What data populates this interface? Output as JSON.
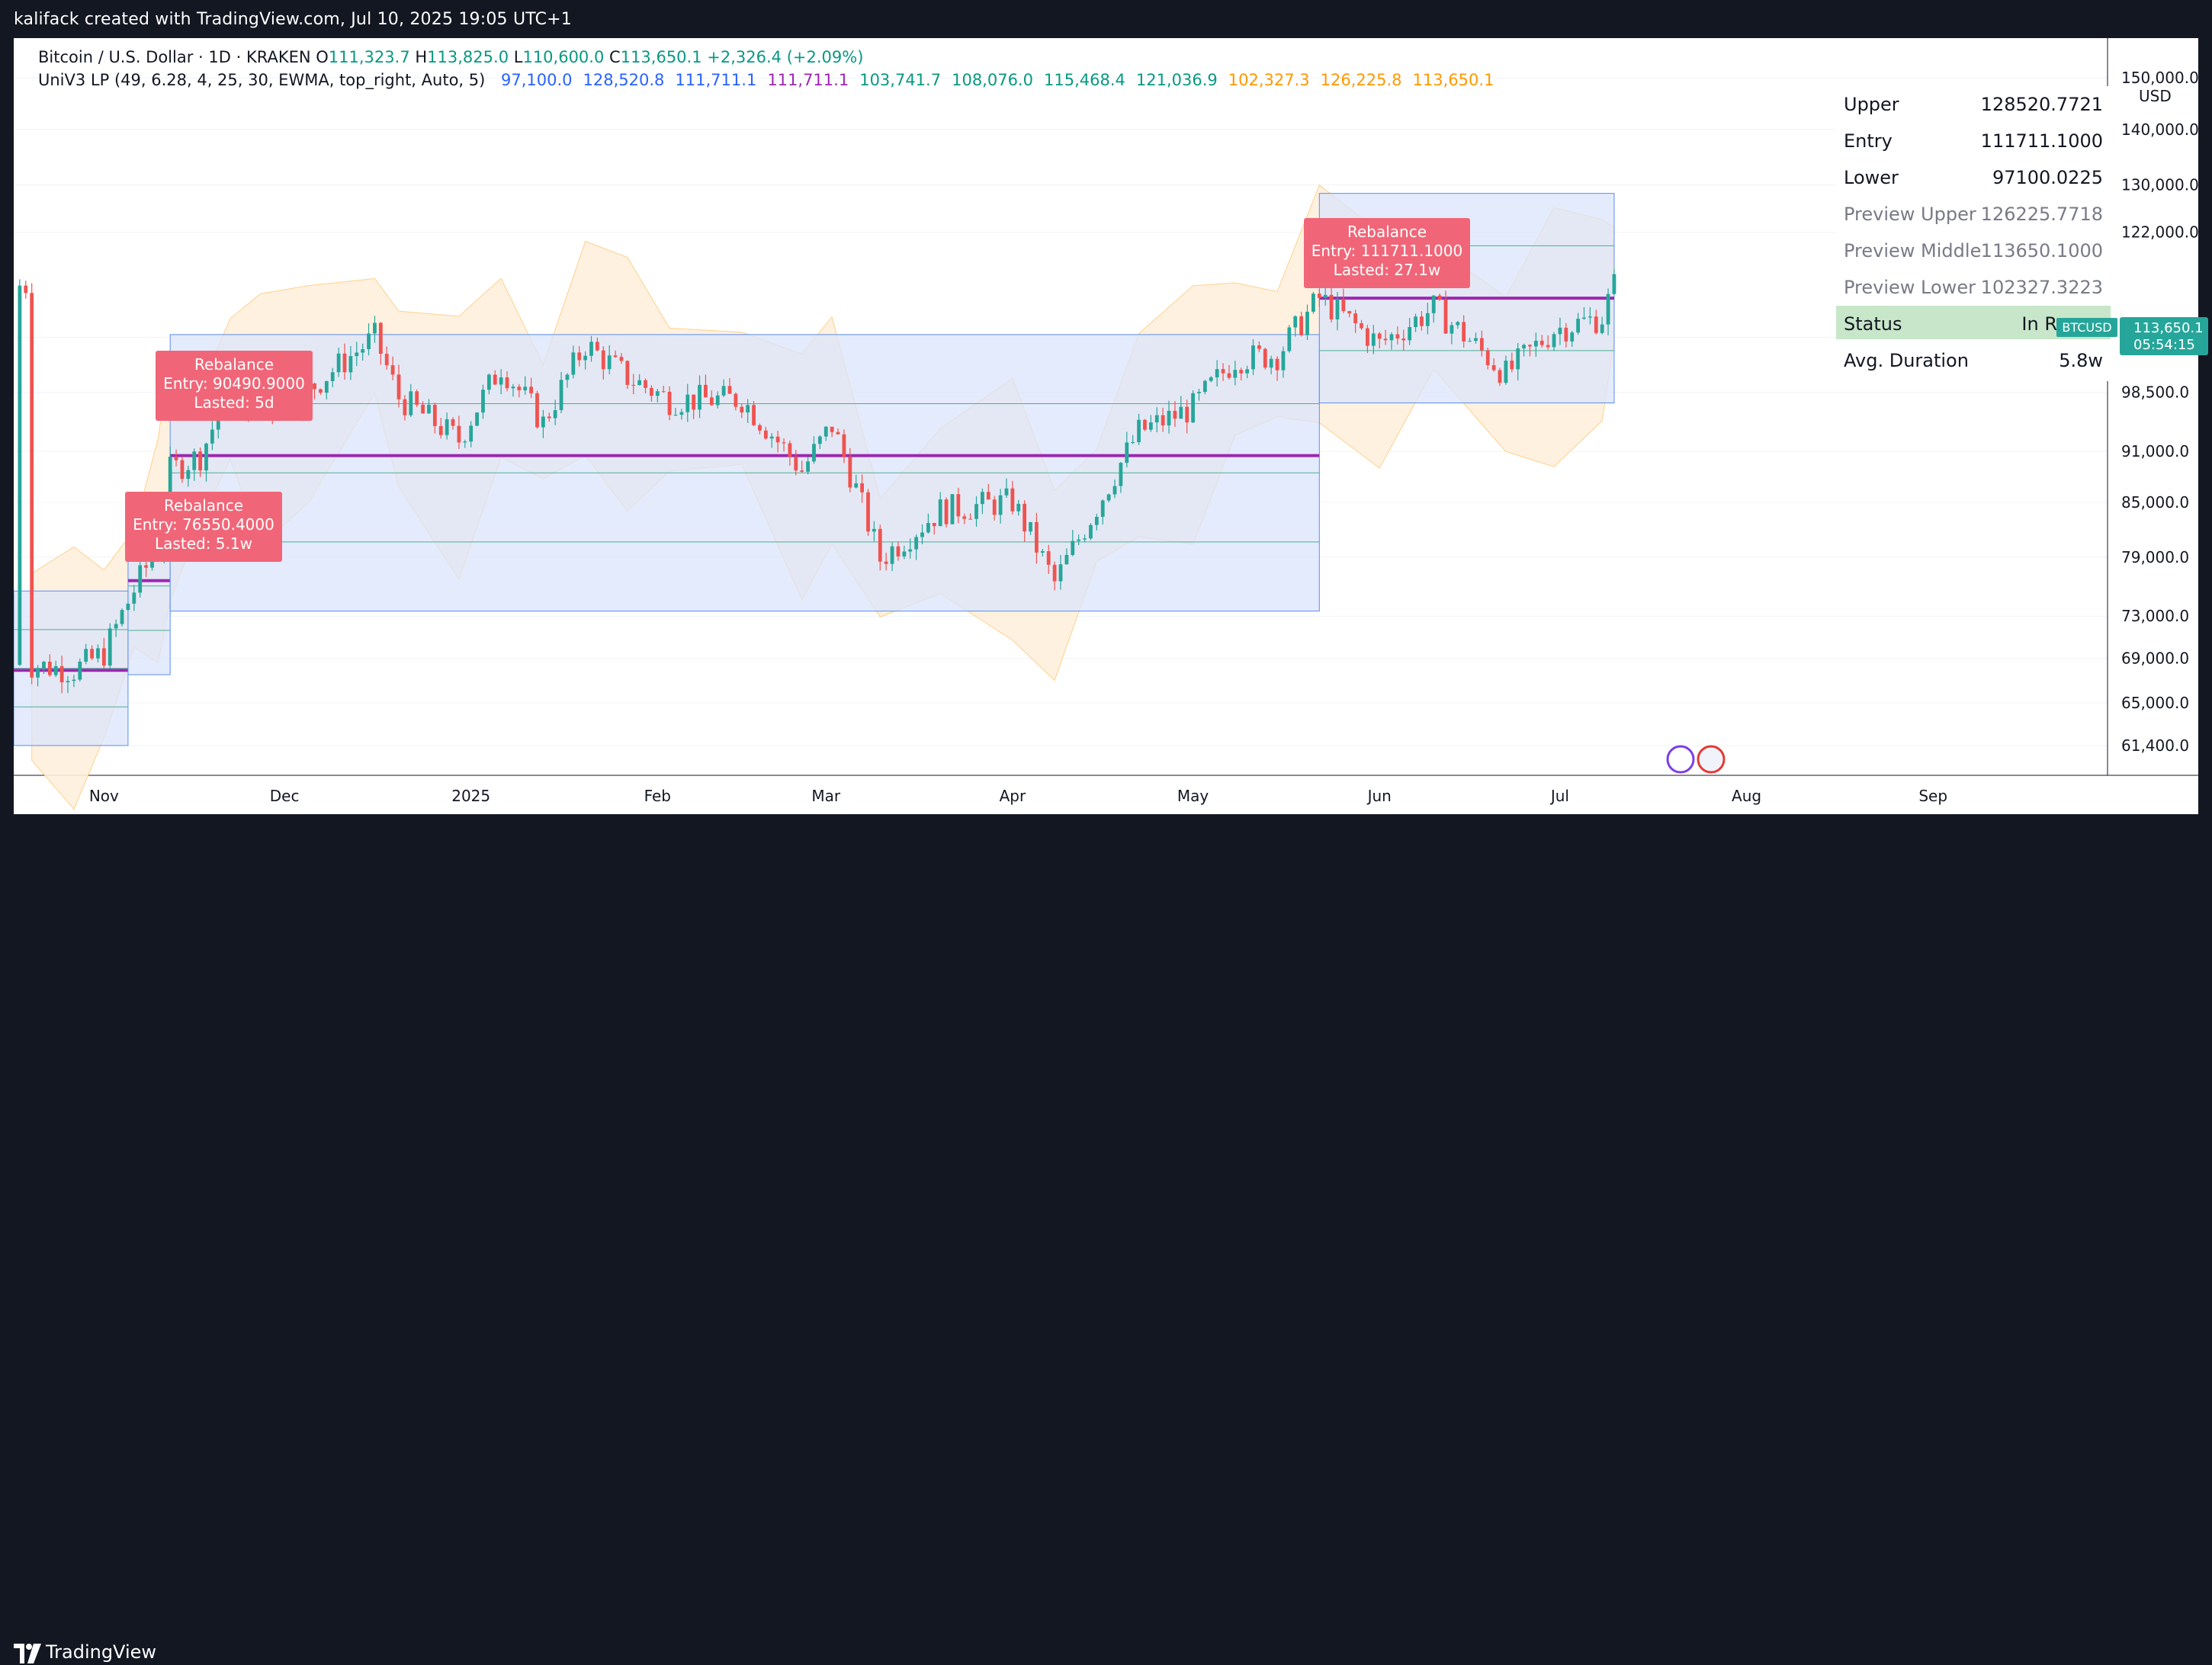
{
  "header": {
    "title": "kalifack created with TradingView.com, Jul 10, 2025 19:05 UTC+1"
  },
  "footer": {
    "brand": "TradingView"
  },
  "legend": {
    "symbol_line": "Bitcoin / U.S. Dollar · 1D · KRAKEN",
    "ohlc": {
      "o_label": "O",
      "o": "111,323.7",
      "h_label": "H",
      "h": "113,825.0",
      "l_label": "L",
      "l": "110,600.0",
      "c_label": "C",
      "c": "113,650.1",
      "chg": "+2,326.4 (+2.09%)"
    },
    "indicator_line": "UniV3 LP (49, 6.28, 4, 25, 30, EWMA, top_right, Auto, 5)",
    "indicator_values": [
      {
        "v": "97,100.0",
        "color": "#2962ff"
      },
      {
        "v": "128,520.8",
        "color": "#2962ff"
      },
      {
        "v": "111,711.1",
        "color": "#2962ff"
      },
      {
        "v": "111,711.1",
        "color": "#9c27b0"
      },
      {
        "v": "103,741.7",
        "color": "#089981"
      },
      {
        "v": "108,076.0",
        "color": "#089981"
      },
      {
        "v": "115,468.4",
        "color": "#089981"
      },
      {
        "v": "121,036.9",
        "color": "#089981"
      },
      {
        "v": "102,327.3",
        "color": "#ff9800"
      },
      {
        "v": "126,225.8",
        "color": "#ff9800"
      },
      {
        "v": "113,650.1",
        "color": "#ff9800"
      }
    ]
  },
  "info_panel": {
    "rows": [
      {
        "k": "Upper",
        "v": "128520.7721"
      },
      {
        "k": "Entry",
        "v": "111711.1000"
      },
      {
        "k": "Lower",
        "v": "97100.0225"
      },
      {
        "k": "Preview Upper",
        "v": "126225.7718"
      },
      {
        "k": "Preview Middle",
        "v": "113650.1000"
      },
      {
        "k": "Preview Lower",
        "v": "102327.3223"
      },
      {
        "k": "Status",
        "v": "In R"
      },
      {
        "k": "Avg. Duration",
        "v": "5.8w"
      }
    ]
  },
  "price_axis": {
    "currency": "USD",
    "ticks": [
      "150,000.0",
      "140,000.0",
      "130,000.0",
      "122,000.0",
      "106,000.0",
      "98,500.0",
      "91,000.0",
      "85,000.0",
      "79,000.0",
      "73,000.0",
      "69,000.0",
      "65,000.0",
      "61,400.0"
    ],
    "last_price": "113,650.1",
    "countdown": "05:54:15",
    "symbol": "BTCUSD"
  },
  "time_axis": {
    "ticks": [
      "Nov",
      "Dec",
      "2025",
      "Feb",
      "Mar",
      "Apr",
      "May",
      "Jun",
      "Jul",
      "Aug",
      "Sep"
    ]
  },
  "rebalances": [
    {
      "title": "Rebalance",
      "entry": "Entry: 76550.4000",
      "lasted": "Lasted: 5.1w"
    },
    {
      "title": "Rebalance",
      "entry": "Entry: 90490.9000",
      "lasted": "Lasted: 5d"
    },
    {
      "title": "Rebalance",
      "entry": "Entry: 111711.1000",
      "lasted": "Lasted: 27.1w"
    }
  ],
  "chart_data": {
    "type": "candlestick",
    "series_name": "Bitcoin / U.S. Dollar",
    "interval": "1D",
    "x_range": [
      "2024-10-17",
      "2025-09-30"
    ],
    "y_log": true,
    "closes": [
      {
        "date": "2024-10-20",
        "close": 68400
      },
      {
        "date": "2024-10-27",
        "close": 67900
      },
      {
        "date": "2024-11-01",
        "close": 69500
      },
      {
        "date": "2024-11-06",
        "close": 75600
      },
      {
        "date": "2024-11-10",
        "close": 80200
      },
      {
        "date": "2024-11-12",
        "close": 88700
      },
      {
        "date": "2024-11-17",
        "close": 90500
      },
      {
        "date": "2024-11-22",
        "close": 98900
      },
      {
        "date": "2024-11-27",
        "close": 95800
      },
      {
        "date": "2024-12-05",
        "close": 98800
      },
      {
        "date": "2024-12-16",
        "close": 106000
      },
      {
        "date": "2024-12-20",
        "close": 97800
      },
      {
        "date": "2024-12-30",
        "close": 92400
      },
      {
        "date": "2025-01-06",
        "close": 102000
      },
      {
        "date": "2025-01-13",
        "close": 94500
      },
      {
        "date": "2025-01-20",
        "close": 105000
      },
      {
        "date": "2025-01-27",
        "close": 100500
      },
      {
        "date": "2025-02-03",
        "close": 97500
      },
      {
        "date": "2025-02-15",
        "close": 97600
      },
      {
        "date": "2025-02-25",
        "close": 88700
      },
      {
        "date": "2025-03-02",
        "close": 94200
      },
      {
        "date": "2025-03-10",
        "close": 78800
      },
      {
        "date": "2025-03-20",
        "close": 84100
      },
      {
        "date": "2025-04-01",
        "close": 85100
      },
      {
        "date": "2025-04-08",
        "close": 76300
      },
      {
        "date": "2025-04-15",
        "close": 84500
      },
      {
        "date": "2025-04-22",
        "close": 93400
      },
      {
        "date": "2025-05-01",
        "close": 96500
      },
      {
        "date": "2025-05-08",
        "close": 103000
      },
      {
        "date": "2025-05-15",
        "close": 103500
      },
      {
        "date": "2025-05-22",
        "close": 111700
      },
      {
        "date": "2025-06-01",
        "close": 105000
      },
      {
        "date": "2025-06-10",
        "close": 110200
      },
      {
        "date": "2025-06-22",
        "close": 100900
      },
      {
        "date": "2025-06-30",
        "close": 107100
      },
      {
        "date": "2025-07-08",
        "close": 108900
      },
      {
        "date": "2025-07-10",
        "close": 113650
      }
    ],
    "ranges": [
      {
        "from": "2024-10-17",
        "to": "2024-11-05",
        "lower": 61400,
        "entry": 67900,
        "upper": 75500
      },
      {
        "from": "2024-11-05",
        "to": "2024-11-12",
        "lower": 67500,
        "entry": 76550,
        "upper": 85600
      },
      {
        "from": "2024-11-12",
        "to": "2025-05-22",
        "lower": 73500,
        "entry": 90490,
        "upper": 106400
      },
      {
        "from": "2025-05-22",
        "to": "2025-07-10",
        "lower": 97100,
        "entry": 111711,
        "upper": 128520
      }
    ]
  },
  "colors": {
    "up": "#26a69a",
    "down": "#ef5350",
    "range_fill": "#dbe4fb",
    "entry": "#9c27b0",
    "orange_fill": "#fff0dd"
  }
}
